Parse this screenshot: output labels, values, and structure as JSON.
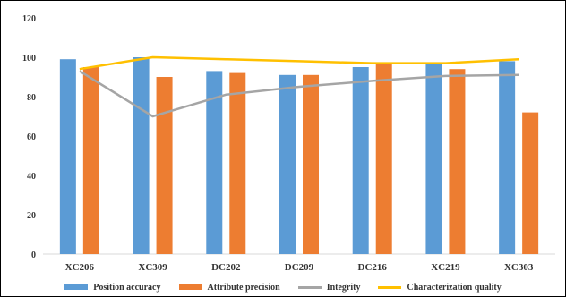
{
  "chart_data": {
    "type": "bar",
    "title": "",
    "xlabel": "",
    "ylabel": "",
    "categories": [
      "XC206",
      "XC309",
      "DC202",
      "DC209",
      "DC216",
      "XC219",
      "XC303"
    ],
    "ylim": [
      0,
      120
    ],
    "yticks": [
      0,
      20,
      40,
      60,
      80,
      100,
      120
    ],
    "grid": false,
    "legend_position": "bottom",
    "series": [
      {
        "name": "Position accuracy",
        "kind": "bar",
        "color": "#5b9bd5",
        "values": [
          99,
          100,
          93,
          91,
          95,
          97,
          98
        ]
      },
      {
        "name": "Attribute precision",
        "kind": "bar",
        "color": "#ed7d31",
        "values": [
          95,
          90,
          92,
          91,
          97,
          94,
          72
        ]
      },
      {
        "name": "Integrity",
        "kind": "line",
        "color": "#a5a5a5",
        "values": [
          93,
          70,
          81,
          85,
          88,
          90.5,
          91
        ]
      },
      {
        "name": "Characterization quality",
        "kind": "line",
        "color": "#ffc000",
        "values": [
          94,
          100,
          99,
          98,
          97,
          97,
          99
        ]
      }
    ]
  }
}
